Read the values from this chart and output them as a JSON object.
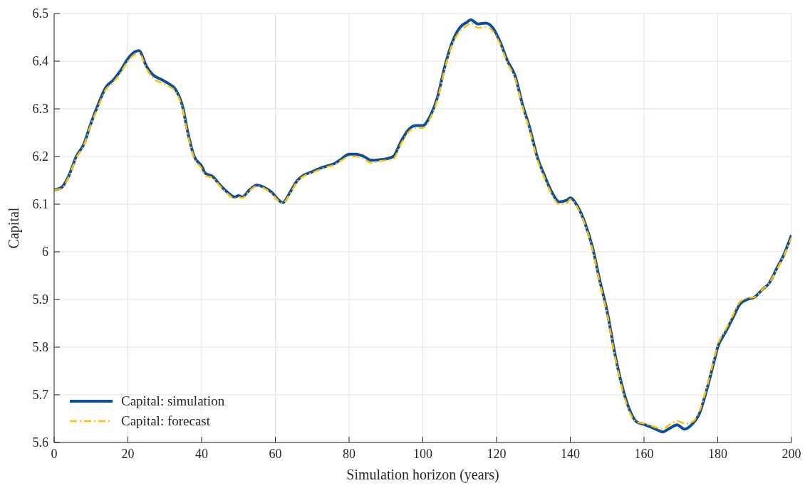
{
  "chart_data": {
    "type": "line",
    "xlabel": "Simulation horizon (years)",
    "ylabel": "Capital",
    "xlim": [
      0,
      200
    ],
    "xticks": [
      0,
      20,
      40,
      60,
      80,
      100,
      120,
      140,
      160,
      180,
      200
    ],
    "ylim": [
      5.6,
      6.5
    ],
    "yticks": [
      5.6,
      5.7,
      5.8,
      5.9,
      6,
      6.1,
      6.2,
      6.3,
      6.4,
      6.5
    ],
    "grid": true,
    "legend": "bottom left",
    "x": [
      0,
      2,
      4,
      6,
      8,
      10,
      12,
      14,
      16,
      18,
      20,
      22,
      23,
      25,
      27,
      29,
      31,
      33,
      35,
      36,
      38,
      40,
      41,
      43,
      45,
      47,
      49,
      50,
      51,
      53,
      55,
      57,
      59,
      61,
      62,
      64,
      66,
      68,
      70,
      72,
      74,
      76,
      78,
      80,
      82,
      84,
      86,
      88,
      90,
      92,
      94,
      96,
      98,
      100,
      102,
      104,
      106,
      108,
      110,
      112,
      113,
      115,
      117,
      119,
      121,
      123,
      125,
      127,
      129,
      131,
      133,
      135,
      137,
      139,
      140,
      142,
      144,
      146,
      148,
      150,
      152,
      154,
      156,
      158,
      160,
      162,
      164,
      165,
      167,
      169,
      171,
      173,
      175,
      177,
      179,
      180,
      182,
      184,
      186,
      188,
      190,
      192,
      194,
      196,
      198,
      200
    ],
    "series": [
      {
        "name": "Capital: simulation",
        "color": "#0b4f9c",
        "line_style": "solid",
        "values": [
          6.13,
          6.135,
          6.16,
          6.2,
          6.225,
          6.27,
          6.31,
          6.345,
          6.36,
          6.38,
          6.405,
          6.42,
          6.422,
          6.39,
          6.37,
          6.362,
          6.353,
          6.34,
          6.3,
          6.26,
          6.2,
          6.18,
          6.165,
          6.158,
          6.14,
          6.125,
          6.115,
          6.118,
          6.115,
          6.13,
          6.14,
          6.135,
          6.125,
          6.108,
          6.103,
          6.125,
          6.15,
          6.162,
          6.168,
          6.175,
          6.18,
          6.185,
          6.195,
          6.205,
          6.205,
          6.2,
          6.192,
          6.193,
          6.195,
          6.2,
          6.23,
          6.255,
          6.265,
          6.265,
          6.285,
          6.325,
          6.39,
          6.44,
          6.47,
          6.482,
          6.487,
          6.478,
          6.48,
          6.47,
          6.44,
          6.4,
          6.37,
          6.31,
          6.26,
          6.2,
          6.16,
          6.125,
          6.105,
          6.108,
          6.113,
          6.095,
          6.06,
          6.01,
          5.94,
          5.875,
          5.79,
          5.72,
          5.67,
          5.643,
          5.638,
          5.632,
          5.625,
          5.622,
          5.63,
          5.637,
          5.628,
          5.638,
          5.66,
          5.71,
          5.77,
          5.8,
          5.83,
          5.86,
          5.89,
          5.9,
          5.905,
          5.92,
          5.935,
          5.965,
          5.995,
          6.035
        ]
      },
      {
        "name": "Capital: forecast",
        "color": "#ffc000",
        "line_style": "dashed",
        "values": [
          6.13,
          6.133,
          6.158,
          6.197,
          6.222,
          6.267,
          6.305,
          6.34,
          6.355,
          6.375,
          6.4,
          6.415,
          6.418,
          6.385,
          6.363,
          6.355,
          6.348,
          6.335,
          6.295,
          6.255,
          6.197,
          6.175,
          6.16,
          6.155,
          6.138,
          6.122,
          6.112,
          6.115,
          6.113,
          6.128,
          6.138,
          6.133,
          6.122,
          6.106,
          6.102,
          6.122,
          6.148,
          6.16,
          6.166,
          6.172,
          6.178,
          6.182,
          6.192,
          6.2,
          6.2,
          6.195,
          6.187,
          6.19,
          6.192,
          6.195,
          6.225,
          6.25,
          6.26,
          6.26,
          6.28,
          6.32,
          6.385,
          6.435,
          6.462,
          6.475,
          6.48,
          6.47,
          6.472,
          6.463,
          6.435,
          6.395,
          6.365,
          6.305,
          6.255,
          6.195,
          6.155,
          6.12,
          6.1,
          6.102,
          6.11,
          6.092,
          6.057,
          6.005,
          5.935,
          5.87,
          5.785,
          5.715,
          5.665,
          5.643,
          5.64,
          5.635,
          5.63,
          5.628,
          5.638,
          5.645,
          5.64,
          5.643,
          5.665,
          5.715,
          5.775,
          5.805,
          5.835,
          5.865,
          5.895,
          5.903,
          5.905,
          5.92,
          5.935,
          5.962,
          5.993,
          6.03
        ]
      }
    ]
  }
}
